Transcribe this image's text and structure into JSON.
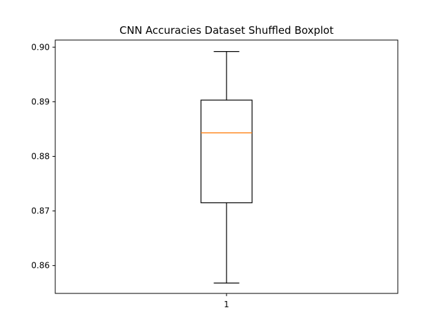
{
  "chart_data": {
    "type": "boxplot",
    "title": "CNN Accuracies Dataset Shuffled Boxplot",
    "xlabel": "",
    "ylabel": "",
    "categories": [
      "1"
    ],
    "boxes": [
      {
        "category": "1",
        "whisker_low": 0.8568,
        "q1": 0.8715,
        "median": 0.8843,
        "q3": 0.8903,
        "whisker_high": 0.8992
      }
    ],
    "ylim": [
      0.8549,
      0.9013
    ],
    "yticks": [
      0.86,
      0.87,
      0.88,
      0.89,
      0.9
    ],
    "ytick_labels": [
      "0.86",
      "0.87",
      "0.88",
      "0.89",
      "0.90"
    ],
    "grid": false,
    "colors": {
      "box": "#000000",
      "whisker": "#000000",
      "median": "#ff7f0e"
    }
  }
}
